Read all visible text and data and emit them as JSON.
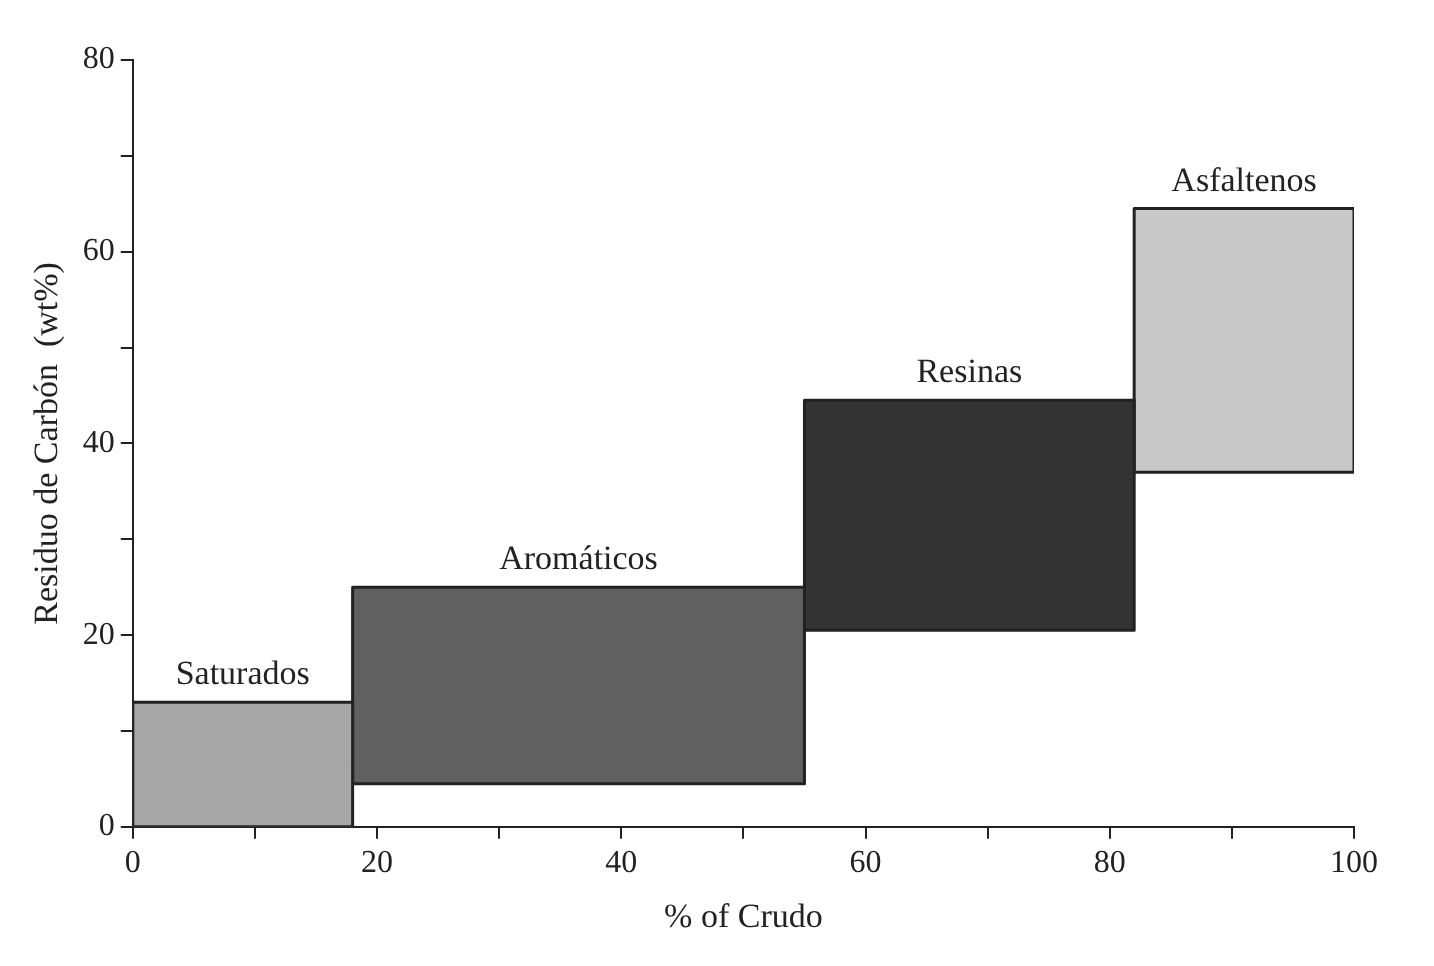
{
  "chart_data": {
    "type": "histogram",
    "xlabel": "% of Crudo",
    "ylabel": "Residuo de Carbón  (wt%)",
    "xlim": [
      0,
      100
    ],
    "xticks": [
      0,
      {
        "value": 10,
        "label": null
      },
      20,
      {
        "value": 30,
        "label": null
      },
      40,
      {
        "value": 50,
        "label": null
      },
      60,
      {
        "value": 70,
        "label": null
      },
      80,
      {
        "value": 90,
        "label": null
      },
      100
    ],
    "ylim": [
      0,
      80
    ],
    "yticks": [
      0,
      {
        "value": 10,
        "label": null
      },
      20,
      {
        "value": 30,
        "label": null
      },
      40,
      {
        "value": 50,
        "label": null
      },
      60,
      {
        "value": 70,
        "label": null
      },
      80
    ],
    "grid": false,
    "legend": false,
    "bins": [
      0,
      18,
      55,
      82,
      100
    ],
    "values": [
      13,
      20.5,
      24,
      27.5
    ],
    "base": [
      0,
      4.5,
      20.5,
      37
    ],
    "colors": [
      "#a6a6a6",
      "#606060",
      "#333333",
      "#c8c8c8"
    ],
    "annotations": [
      {
        "text": "Saturados",
        "x": 9,
        "y": 13
      },
      {
        "text": "Aromáticos",
        "x": 36.5,
        "y": 25
      },
      {
        "text": "Resinas",
        "x": 68.5,
        "y": 44.5
      },
      {
        "text": "Asfaltenos",
        "x": 91,
        "y": 64.5
      }
    ]
  }
}
